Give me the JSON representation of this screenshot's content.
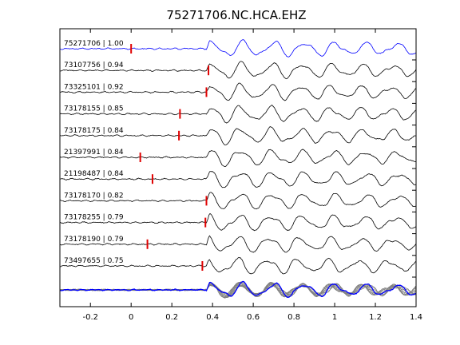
{
  "chart_data": {
    "type": "line",
    "title": "75271706.NC.HCA.EHZ",
    "xlim": [
      -0.35,
      1.4
    ],
    "x_ticks": [
      -0.2,
      0,
      0.2,
      0.4,
      0.6,
      0.8,
      1,
      1.2,
      1.4
    ],
    "x_tick_labels": [
      "-0.2",
      "0",
      "0.2",
      "0.4",
      "0.6",
      "0.8",
      "1",
      "1.2",
      "1.4"
    ],
    "xlabel": "",
    "ylabel": "",
    "grid": false,
    "traces": [
      {
        "label": "75271706 | 1.00",
        "pick": 0.0,
        "color": "#0000ff"
      },
      {
        "label": "73107756 | 0.94",
        "pick": 0.38,
        "color": "#000000"
      },
      {
        "label": "73325101 | 0.92",
        "pick": 0.37,
        "color": "#000000"
      },
      {
        "label": "73178155 | 0.85",
        "pick": 0.24,
        "color": "#000000"
      },
      {
        "label": "73178175 | 0.84",
        "pick": 0.235,
        "color": "#000000"
      },
      {
        "label": "21397991 | 0.84",
        "pick": 0.045,
        "color": "#000000"
      },
      {
        "label": "21198487 | 0.84",
        "pick": 0.105,
        "color": "#000000"
      },
      {
        "label": "73178170 | 0.82",
        "pick": 0.37,
        "color": "#000000"
      },
      {
        "label": "73178255 | 0.79",
        "pick": 0.365,
        "color": "#000000"
      },
      {
        "label": "73178190 | 0.79",
        "pick": 0.08,
        "color": "#000000"
      },
      {
        "label": "73497655 | 0.75",
        "pick": 0.35,
        "color": "#000000"
      }
    ],
    "stack_colors": {
      "reference": "#0000ff",
      "overlay": "#808080"
    },
    "pick_color": "#e00000"
  }
}
